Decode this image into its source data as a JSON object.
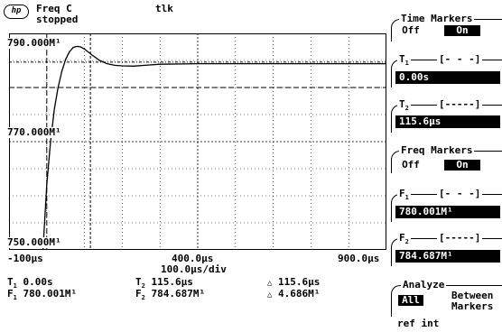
{
  "header": {
    "logo": "hp",
    "mode_line1": "Freq C",
    "mode_line2": "stopped",
    "status": "tlk"
  },
  "graph": {
    "y_top_label": "790.000M¹",
    "y_mid_label": "770.000M¹",
    "y_bottom_label": "750.000M¹",
    "x_left_label": "-100µs",
    "x_mid_label": "400.0µs",
    "x_right_label": "900.0µs",
    "timebase_label": "100.0µs/div"
  },
  "chart_data": {
    "type": "line",
    "xlabel": "",
    "ylabel": "",
    "x_unit": "µs",
    "y_unit": "MHz",
    "xlim": [
      -100,
      900
    ],
    "ylim": [
      750,
      790
    ],
    "grid": true,
    "series": [
      {
        "x": [
          -100,
          -10,
          -5,
          0,
          10,
          20,
          30,
          40,
          50,
          60,
          70,
          80,
          90,
          100,
          120,
          140,
          160,
          180,
          200,
          230,
          260,
          300,
          400,
          500,
          600,
          700,
          800,
          900
        ],
        "y": [
          750.0,
          750.0,
          756,
          762,
          770,
          776,
          780,
          783,
          785.2,
          786.6,
          787.4,
          787.6,
          787.5,
          787.1,
          786.0,
          785.0,
          784.4,
          784.1,
          784.0,
          783.95,
          784.1,
          784.3,
          784.4,
          784.4,
          784.4,
          784.4,
          784.4,
          784.4
        ]
      }
    ],
    "markers": {
      "T1_us": 0.0,
      "T2_us": 115.6,
      "F1_MHz": 780.001,
      "F2_MHz": 784.687
    }
  },
  "readouts": {
    "t1_label": "T",
    "t1_sub": "1",
    "t1_value": "0.00s",
    "f1_label": "F",
    "f1_sub": "1",
    "f1_value": "780.001M¹",
    "t2_label": "T",
    "t2_sub": "2",
    "t2_value": "115.6µs",
    "f2_label": "F",
    "f2_sub": "2",
    "f2_value": "784.687M¹",
    "delta_t_value": "115.6µs",
    "delta_f_value": "4.686M¹"
  },
  "softkeys": {
    "time_markers": {
      "title": "Time Markers",
      "off": "Off",
      "on": "On"
    },
    "t1": {
      "label": "T",
      "sub": "1",
      "bracket": "[- - -]",
      "value": "0.00s"
    },
    "t2": {
      "label": "T",
      "sub": "2",
      "bracket": "[-----]",
      "value": "115.6µs"
    },
    "freq_markers": {
      "title": "Freq Markers",
      "off": "Off",
      "on": "On"
    },
    "f1": {
      "label": "F",
      "sub": "1",
      "bracket": "[- - -]",
      "value": "780.001M¹"
    },
    "f2": {
      "label": "F",
      "sub": "2",
      "bracket": "[-----]",
      "value": "784.687M¹"
    },
    "analyze": {
      "title": "Analyze",
      "all": "All",
      "between": "Between",
      "markers": "Markers"
    }
  },
  "footer": {
    "ref": "ref int"
  }
}
